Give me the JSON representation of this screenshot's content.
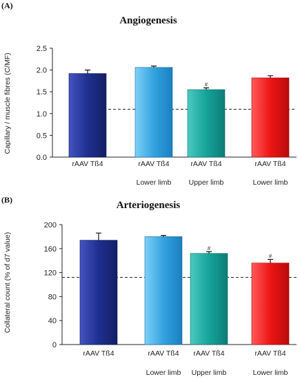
{
  "chart_data": [
    {
      "panel": "(A)",
      "type": "bar",
      "title": "Angiogenesis",
      "ylabel": "Capillary / muscle fibres (C/MF)",
      "ylim": [
        0,
        2.5
      ],
      "yticks": [
        "0.0",
        "0.5",
        "1.0",
        "1.5",
        "2.0",
        "2.5"
      ],
      "categories": [
        {
          "line1": "rAAV Tß4",
          "line2": ""
        },
        {
          "line1": "rAAV Tß4",
          "line2": "Lower limb"
        },
        {
          "line1": "rAAV Tß4",
          "line2": "Upper limb"
        },
        {
          "line1": "rAAV Tß4",
          "line2": "Lower limb"
        }
      ],
      "values": [
        1.92,
        2.06,
        1.55,
        1.82
      ],
      "errors": [
        0.08,
        0.03,
        0.04,
        0.05
      ],
      "significance": [
        "",
        "",
        "#",
        ""
      ],
      "colors": [
        "#1f2f8f",
        "#33a3e0",
        "#15a39b",
        "#ee1515"
      ],
      "reference_line": 1.1
    },
    {
      "panel": "(B)",
      "type": "bar",
      "title": "Arteriogenesis",
      "ylabel": "Collateral count (% of d7 value)",
      "ylim": [
        0,
        200
      ],
      "yticks": [
        "0",
        "40",
        "80",
        "120",
        "160",
        "200"
      ],
      "categories": [
        {
          "line1": "rAAV Tß4",
          "line2": ""
        },
        {
          "line1": "rAAV Tß4",
          "line2": "Lower limb"
        },
        {
          "line1": "rAAV Tß4",
          "line2": "Upper limb"
        },
        {
          "line1": "rAAV Tß4",
          "line2": "Lower limb"
        }
      ],
      "values": [
        174,
        180,
        152,
        136
      ],
      "errors": [
        12,
        2,
        3,
        6
      ],
      "significance": [
        "",
        "",
        "#",
        "#"
      ],
      "colors": [
        "#1f2f8f",
        "#33a3e0",
        "#15a39b",
        "#ee1515"
      ],
      "reference_line": 112
    }
  ]
}
